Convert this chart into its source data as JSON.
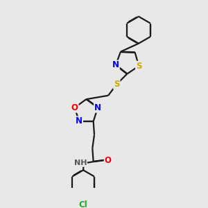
{
  "bg_color": "#e8e8e8",
  "atom_colors": {
    "C": "#1a1a1a",
    "N": "#0000ee",
    "O": "#ee0000",
    "S": "#ccaa00",
    "Cl": "#22aa22",
    "H": "#555555"
  },
  "line_color": "#1a1a1a",
  "line_width": 1.6,
  "font_size": 8.5
}
